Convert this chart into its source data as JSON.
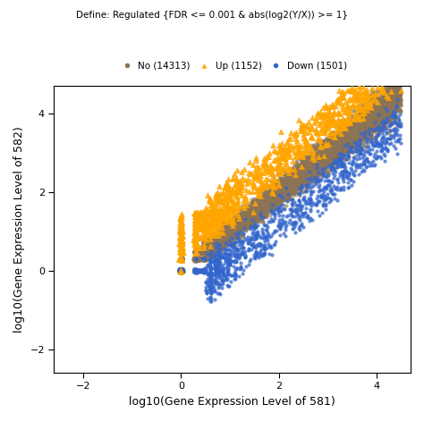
{
  "title_line1": "Define: Regulated {FDR <= 0.001 & abs(log2(Y/X)) >= 1}",
  "legend_no": "No (14313)",
  "legend_up": "Up (1152)",
  "legend_down": "Down (1501)",
  "n_no": 14313,
  "n_up": 1152,
  "n_down": 1501,
  "xlabel": "log10(Gene Expression Level of 581)",
  "ylabel": "log10(Gene Expression Level of 582)",
  "xlim": [
    -2.6,
    4.7
  ],
  "ylim": [
    -2.6,
    4.7
  ],
  "xticks": [
    -2,
    0,
    2,
    4
  ],
  "yticks": [
    -2,
    0,
    2,
    4
  ],
  "color_no": "#8B7355",
  "color_up": "#FFA500",
  "color_down": "#3366CC",
  "marker_no": "o",
  "marker_up": "^",
  "marker_down": "o",
  "ms_no": 3,
  "ms_up": 5,
  "ms_down": 3,
  "alpha_no": 0.6,
  "alpha_up": 0.85,
  "alpha_down": 0.75,
  "seed": 42
}
